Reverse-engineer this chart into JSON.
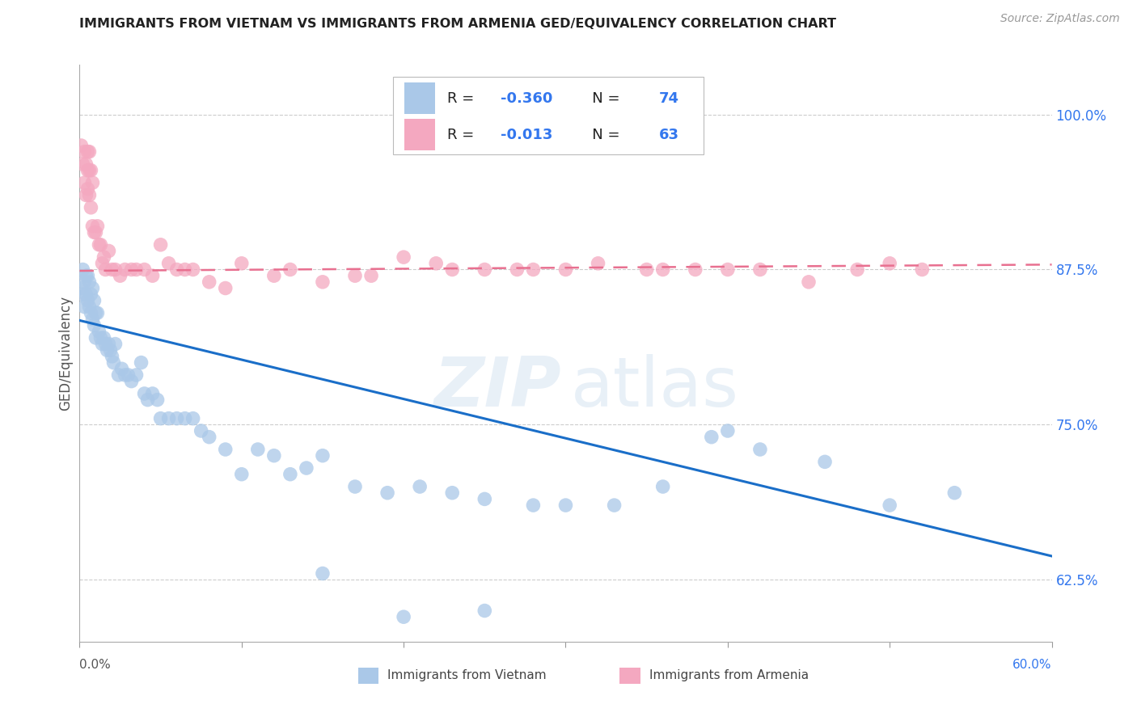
{
  "title": "IMMIGRANTS FROM VIETNAM VS IMMIGRANTS FROM ARMENIA GED/EQUIVALENCY CORRELATION CHART",
  "source": "Source: ZipAtlas.com",
  "ylabel": "GED/Equivalency",
  "xlim": [
    0.0,
    0.6
  ],
  "ylim": [
    0.575,
    1.04
  ],
  "right_yticks": [
    1.0,
    0.875,
    0.75,
    0.625
  ],
  "right_yticklabels": [
    "100.0%",
    "87.5%",
    "75.0%",
    "62.5%"
  ],
  "grid_color": "#cccccc",
  "bg_color": "#ffffff",
  "vietnam_dot_color": "#aac8e8",
  "armenia_dot_color": "#f4a8c0",
  "vietnam_line_color": "#1a6ec8",
  "armenia_line_color": "#e87090",
  "vietnam_R": -0.36,
  "vietnam_N": 74,
  "armenia_R": -0.013,
  "armenia_N": 63,
  "vietnam_line_y0": 0.834,
  "vietnam_line_y1": 0.644,
  "armenia_line_y0": 0.874,
  "armenia_line_y1": 0.879,
  "vietnam_x": [
    0.001,
    0.002,
    0.002,
    0.003,
    0.003,
    0.004,
    0.004,
    0.005,
    0.005,
    0.006,
    0.006,
    0.007,
    0.007,
    0.008,
    0.008,
    0.009,
    0.009,
    0.01,
    0.01,
    0.011,
    0.012,
    0.013,
    0.014,
    0.015,
    0.016,
    0.017,
    0.018,
    0.019,
    0.02,
    0.021,
    0.022,
    0.024,
    0.026,
    0.028,
    0.03,
    0.032,
    0.035,
    0.038,
    0.04,
    0.042,
    0.045,
    0.048,
    0.05,
    0.055,
    0.06,
    0.065,
    0.07,
    0.075,
    0.08,
    0.09,
    0.1,
    0.11,
    0.12,
    0.13,
    0.14,
    0.15,
    0.17,
    0.19,
    0.21,
    0.23,
    0.25,
    0.28,
    0.3,
    0.33,
    0.36,
    0.39,
    0.42,
    0.46,
    0.5,
    0.54,
    0.15,
    0.2,
    0.25,
    0.4
  ],
  "vietnam_y": [
    0.86,
    0.875,
    0.855,
    0.865,
    0.845,
    0.87,
    0.855,
    0.87,
    0.85,
    0.865,
    0.845,
    0.855,
    0.84,
    0.86,
    0.835,
    0.85,
    0.83,
    0.84,
    0.82,
    0.84,
    0.825,
    0.82,
    0.815,
    0.82,
    0.815,
    0.81,
    0.815,
    0.81,
    0.805,
    0.8,
    0.815,
    0.79,
    0.795,
    0.79,
    0.79,
    0.785,
    0.79,
    0.8,
    0.775,
    0.77,
    0.775,
    0.77,
    0.755,
    0.755,
    0.755,
    0.755,
    0.755,
    0.745,
    0.74,
    0.73,
    0.71,
    0.73,
    0.725,
    0.71,
    0.715,
    0.725,
    0.7,
    0.695,
    0.7,
    0.695,
    0.69,
    0.685,
    0.685,
    0.685,
    0.7,
    0.74,
    0.73,
    0.72,
    0.685,
    0.695,
    0.63,
    0.595,
    0.6,
    0.745
  ],
  "armenia_x": [
    0.001,
    0.002,
    0.003,
    0.003,
    0.004,
    0.004,
    0.005,
    0.005,
    0.005,
    0.006,
    0.006,
    0.006,
    0.007,
    0.007,
    0.008,
    0.008,
    0.009,
    0.01,
    0.011,
    0.012,
    0.013,
    0.014,
    0.015,
    0.016,
    0.018,
    0.02,
    0.022,
    0.025,
    0.028,
    0.032,
    0.035,
    0.04,
    0.045,
    0.05,
    0.055,
    0.06,
    0.065,
    0.07,
    0.08,
    0.09,
    0.1,
    0.12,
    0.15,
    0.18,
    0.22,
    0.3,
    0.2,
    0.25,
    0.35,
    0.45,
    0.4,
    0.5,
    0.13,
    0.17,
    0.23,
    0.28,
    0.36,
    0.42,
    0.52,
    0.48,
    0.38,
    0.32,
    0.27
  ],
  "armenia_y": [
    0.975,
    0.96,
    0.97,
    0.945,
    0.96,
    0.935,
    0.97,
    0.955,
    0.94,
    0.97,
    0.955,
    0.935,
    0.955,
    0.925,
    0.945,
    0.91,
    0.905,
    0.905,
    0.91,
    0.895,
    0.895,
    0.88,
    0.885,
    0.875,
    0.89,
    0.875,
    0.875,
    0.87,
    0.875,
    0.875,
    0.875,
    0.875,
    0.87,
    0.895,
    0.88,
    0.875,
    0.875,
    0.875,
    0.865,
    0.86,
    0.88,
    0.87,
    0.865,
    0.87,
    0.88,
    0.875,
    0.885,
    0.875,
    0.875,
    0.865,
    0.875,
    0.88,
    0.875,
    0.87,
    0.875,
    0.875,
    0.875,
    0.875,
    0.875,
    0.875,
    0.875,
    0.88,
    0.875
  ],
  "watermark_zip": "ZIP",
  "watermark_atlas": "atlas"
}
